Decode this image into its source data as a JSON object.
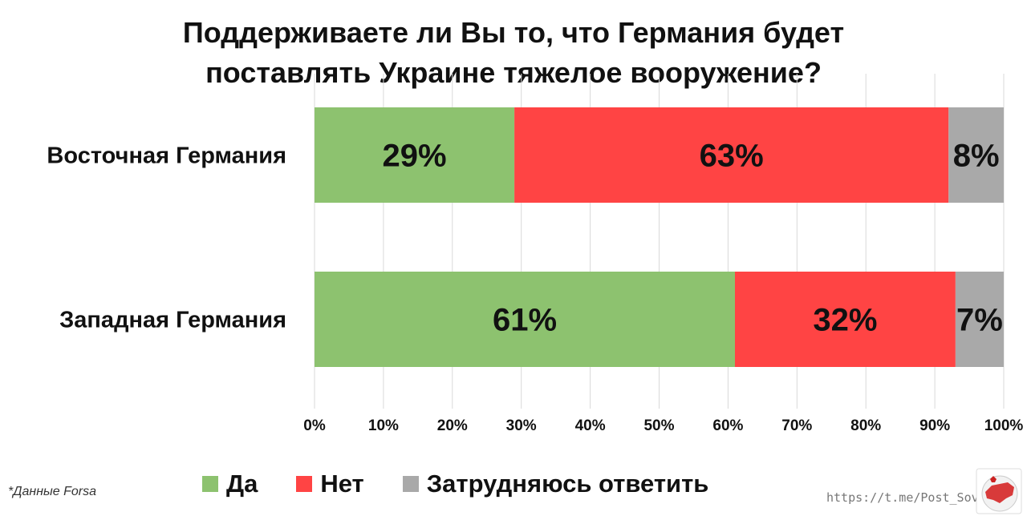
{
  "chart_data": {
    "type": "bar",
    "orientation": "horizontal",
    "stacked": true,
    "title_lines": [
      "Поддерживаете ли Вы то, что Германия будет",
      "поставлять Украине тяжелое вооружение?"
    ],
    "categories": [
      "Восточная Германия",
      "Западная Германия"
    ],
    "series": [
      {
        "name": "Да",
        "color": "#8dc26f",
        "values": [
          29,
          61
        ],
        "labels": [
          "29%",
          "61%"
        ]
      },
      {
        "name": "Нет",
        "color": "#ff4444",
        "values": [
          63,
          32
        ],
        "labels": [
          "63%",
          "32%"
        ]
      },
      {
        "name": "Затрудняюсь ответить",
        "color": "#a9a9a9",
        "values": [
          8,
          7
        ],
        "labels": [
          "8%",
          "7%"
        ]
      }
    ],
    "xlim": [
      0,
      100
    ],
    "xticks": [
      0,
      10,
      20,
      30,
      40,
      50,
      60,
      70,
      80,
      90,
      100
    ],
    "xtick_labels": [
      "0%",
      "10%",
      "20%",
      "30%",
      "40%",
      "50%",
      "60%",
      "70%",
      "80%",
      "90%",
      "100%"
    ],
    "grid": "vertical",
    "legend": "bottom"
  },
  "footer": {
    "source_note": "*Данные  Forsa",
    "url": "https://t.me/Post_Sovet"
  },
  "logo": {
    "icon": "russia-map-logo-icon"
  }
}
